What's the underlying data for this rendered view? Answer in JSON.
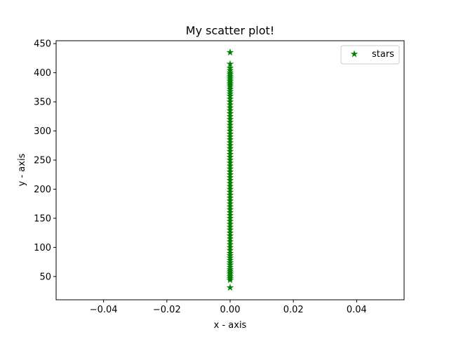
{
  "chart_data": {
    "type": "scatter",
    "title": "My scatter plot!",
    "xlabel": "x - axis",
    "ylabel": "y - axis",
    "xlim": [
      -0.055,
      0.055
    ],
    "ylim": [
      10,
      455
    ],
    "xticks": [
      -0.04,
      -0.02,
      0.0,
      0.02,
      0.04
    ],
    "xtick_labels": [
      "−0.04",
      "−0.02",
      "0.00",
      "0.02",
      "0.04"
    ],
    "yticks": [
      50,
      100,
      150,
      200,
      250,
      300,
      350,
      400,
      450
    ],
    "ytick_labels": [
      "50",
      "100",
      "150",
      "200",
      "250",
      "300",
      "350",
      "400",
      "450"
    ],
    "grid": false,
    "legend": {
      "position": "top-right",
      "entries": [
        "stars"
      ]
    },
    "series": [
      {
        "name": "stars",
        "marker": "star",
        "color": "#008000",
        "x": [
          0,
          0,
          0,
          0,
          0,
          0,
          0,
          0,
          0,
          0,
          0,
          0,
          0,
          0,
          0,
          0,
          0,
          0,
          0,
          0,
          0,
          0,
          0,
          0,
          0,
          0,
          0,
          0,
          0,
          0,
          0,
          0,
          0,
          0,
          0,
          0,
          0,
          0,
          0,
          0,
          0,
          0,
          0,
          0,
          0,
          0,
          0,
          0,
          0,
          0,
          0,
          0,
          0,
          0,
          0,
          0,
          0,
          0,
          0,
          0,
          0,
          0,
          0,
          0,
          0,
          0,
          0,
          0,
          0,
          0,
          0,
          0,
          0,
          0,
          0,
          0,
          0,
          0,
          0,
          0,
          0,
          0,
          0,
          0,
          0
        ],
        "y": [
          31,
          44,
          47,
          50,
          53,
          56,
          59,
          62,
          66,
          70,
          74,
          78,
          82,
          86,
          90,
          95,
          100,
          105,
          110,
          115,
          120,
          125,
          130,
          135,
          140,
          145,
          150,
          155,
          160,
          165,
          170,
          175,
          180,
          185,
          190,
          195,
          200,
          205,
          210,
          215,
          220,
          225,
          230,
          235,
          240,
          245,
          250,
          255,
          260,
          265,
          270,
          275,
          280,
          285,
          290,
          295,
          300,
          305,
          310,
          315,
          320,
          325,
          330,
          335,
          340,
          345,
          350,
          355,
          360,
          364,
          368,
          372,
          376,
          379,
          382,
          385,
          388,
          391,
          394,
          397,
          400,
          404,
          408,
          415,
          435
        ]
      }
    ]
  }
}
